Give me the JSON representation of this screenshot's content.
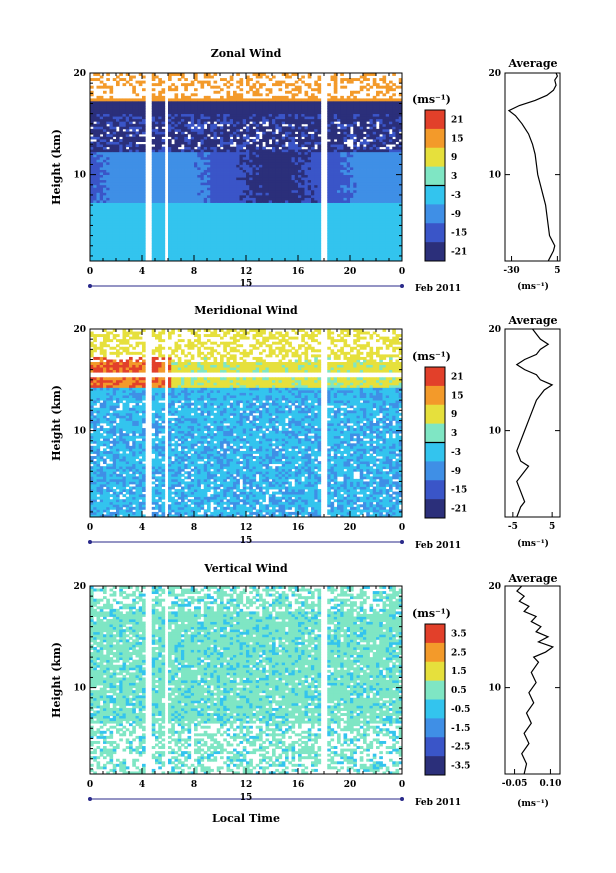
{
  "chart_data": [
    {
      "type": "heatmap",
      "title": "Zonal Wind",
      "ylabel": "Height (km)",
      "x_ticks": [
        "0",
        "4",
        "8",
        "12",
        "16",
        "20",
        "0"
      ],
      "y_ticks": [
        "10",
        "20"
      ],
      "xlim": [
        0,
        24
      ],
      "ylim": [
        1.5,
        20
      ],
      "date_label": "15",
      "month_label": "Feb 2011",
      "colorbar": {
        "unit": "(ms⁻¹)",
        "ticks": [
          "21",
          "15",
          "9",
          "3",
          "-3",
          "-9",
          "-15",
          "-21"
        ],
        "range": [
          -24,
          24
        ]
      },
      "profile": {
        "title": "Average",
        "xlabel": "(ms⁻¹)",
        "x_ticks": [
          "-30",
          "5"
        ],
        "xlim": [
          -35,
          7
        ],
        "y_ticks": [
          "10",
          "20"
        ],
        "points": [
          [
            -2,
            1.5
          ],
          [
            0,
            2
          ],
          [
            2,
            2.5
          ],
          [
            3,
            3
          ],
          [
            1,
            3.5
          ],
          [
            -1,
            4
          ],
          [
            -2,
            5
          ],
          [
            -3,
            6
          ],
          [
            -4,
            7
          ],
          [
            -6,
            8
          ],
          [
            -8,
            9
          ],
          [
            -10,
            10
          ],
          [
            -11,
            11
          ],
          [
            -12,
            12
          ],
          [
            -14,
            13
          ],
          [
            -17,
            14
          ],
          [
            -22,
            15
          ],
          [
            -27,
            15.8
          ],
          [
            -32,
            16.3
          ],
          [
            -24,
            16.8
          ],
          [
            -12,
            17.3
          ],
          [
            -3,
            17.8
          ],
          [
            2,
            18.3
          ],
          [
            4,
            18.8
          ],
          [
            3,
            19.3
          ],
          [
            5,
            19.7
          ],
          [
            4,
            20
          ]
        ]
      }
    },
    {
      "type": "heatmap",
      "title": "Meridional Wind",
      "ylabel": "Height (km)",
      "x_ticks": [
        "0",
        "4",
        "8",
        "12",
        "16",
        "20",
        "0"
      ],
      "y_ticks": [
        "10",
        "20"
      ],
      "xlim": [
        0,
        24
      ],
      "ylim": [
        1.5,
        20
      ],
      "date_label": "15",
      "month_label": "Feb 2011",
      "colorbar": {
        "unit": "(ms⁻¹)",
        "ticks": [
          "21",
          "15",
          "9",
          "3",
          "-3",
          "-9",
          "-15",
          "-21"
        ],
        "range": [
          -24,
          24
        ]
      },
      "profile": {
        "title": "Average",
        "xlabel": "(ms⁻¹)",
        "x_ticks": [
          "-5",
          "5"
        ],
        "xlim": [
          -7,
          7
        ],
        "y_ticks": [
          "10",
          "20"
        ],
        "points": [
          [
            -4,
            1.5
          ],
          [
            -3,
            2.5
          ],
          [
            -2,
            3
          ],
          [
            -3,
            4
          ],
          [
            -4,
            5
          ],
          [
            -2,
            6
          ],
          [
            -1,
            6.5
          ],
          [
            -3,
            7
          ],
          [
            -4,
            8
          ],
          [
            -3,
            9
          ],
          [
            -2,
            10
          ],
          [
            -1,
            11
          ],
          [
            0,
            12
          ],
          [
            1,
            13
          ],
          [
            3,
            14
          ],
          [
            5,
            14.5
          ],
          [
            2,
            15
          ],
          [
            1,
            15.5
          ],
          [
            -2,
            16
          ],
          [
            -4,
            16.5
          ],
          [
            -2,
            17
          ],
          [
            1,
            17.5
          ],
          [
            2,
            18
          ],
          [
            4,
            18.5
          ],
          [
            2,
            19
          ],
          [
            1,
            19.5
          ],
          [
            0,
            20
          ]
        ]
      }
    },
    {
      "type": "heatmap",
      "title": "Vertical Wind",
      "ylabel": "Height (km)",
      "xlabel": "Local Time",
      "x_ticks": [
        "0",
        "4",
        "8",
        "12",
        "16",
        "20",
        "0"
      ],
      "y_ticks": [
        "10",
        "20"
      ],
      "xlim": [
        0,
        24
      ],
      "ylim": [
        1.5,
        20
      ],
      "date_label": "15",
      "month_label": "Feb 2011",
      "colorbar": {
        "unit": "(ms⁻¹)",
        "ticks": [
          "3.5",
          "2.5",
          "1.5",
          "0.5",
          "-0.5",
          "-1.5",
          "-2.5",
          "-3.5"
        ],
        "range": [
          -4,
          4
        ]
      },
      "profile": {
        "title": "Average",
        "xlabel": "(ms⁻¹)",
        "x_ticks": [
          "-0.05",
          "0.10"
        ],
        "xlim": [
          -0.09,
          0.14
        ],
        "y_ticks": [
          "10",
          "20"
        ],
        "points": [
          [
            -0.01,
            1.5
          ],
          [
            0.0,
            2.5
          ],
          [
            -0.02,
            3.5
          ],
          [
            0.01,
            4.5
          ],
          [
            -0.01,
            5.5
          ],
          [
            0.02,
            6.5
          ],
          [
            0.0,
            7.5
          ],
          [
            0.03,
            8.5
          ],
          [
            0.01,
            9.5
          ],
          [
            0.04,
            10.5
          ],
          [
            0.02,
            11.5
          ],
          [
            0.05,
            12.5
          ],
          [
            0.03,
            13
          ],
          [
            0.08,
            13.5
          ],
          [
            0.11,
            14
          ],
          [
            0.05,
            14.5
          ],
          [
            0.09,
            15
          ],
          [
            0.04,
            15.5
          ],
          [
            0.06,
            16
          ],
          [
            0.02,
            16.5
          ],
          [
            0.04,
            17
          ],
          [
            -0.01,
            17.5
          ],
          [
            0.01,
            18
          ],
          [
            -0.03,
            18.5
          ],
          [
            -0.01,
            19
          ],
          [
            -0.04,
            19.5
          ],
          [
            -0.02,
            20
          ]
        ]
      }
    }
  ]
}
